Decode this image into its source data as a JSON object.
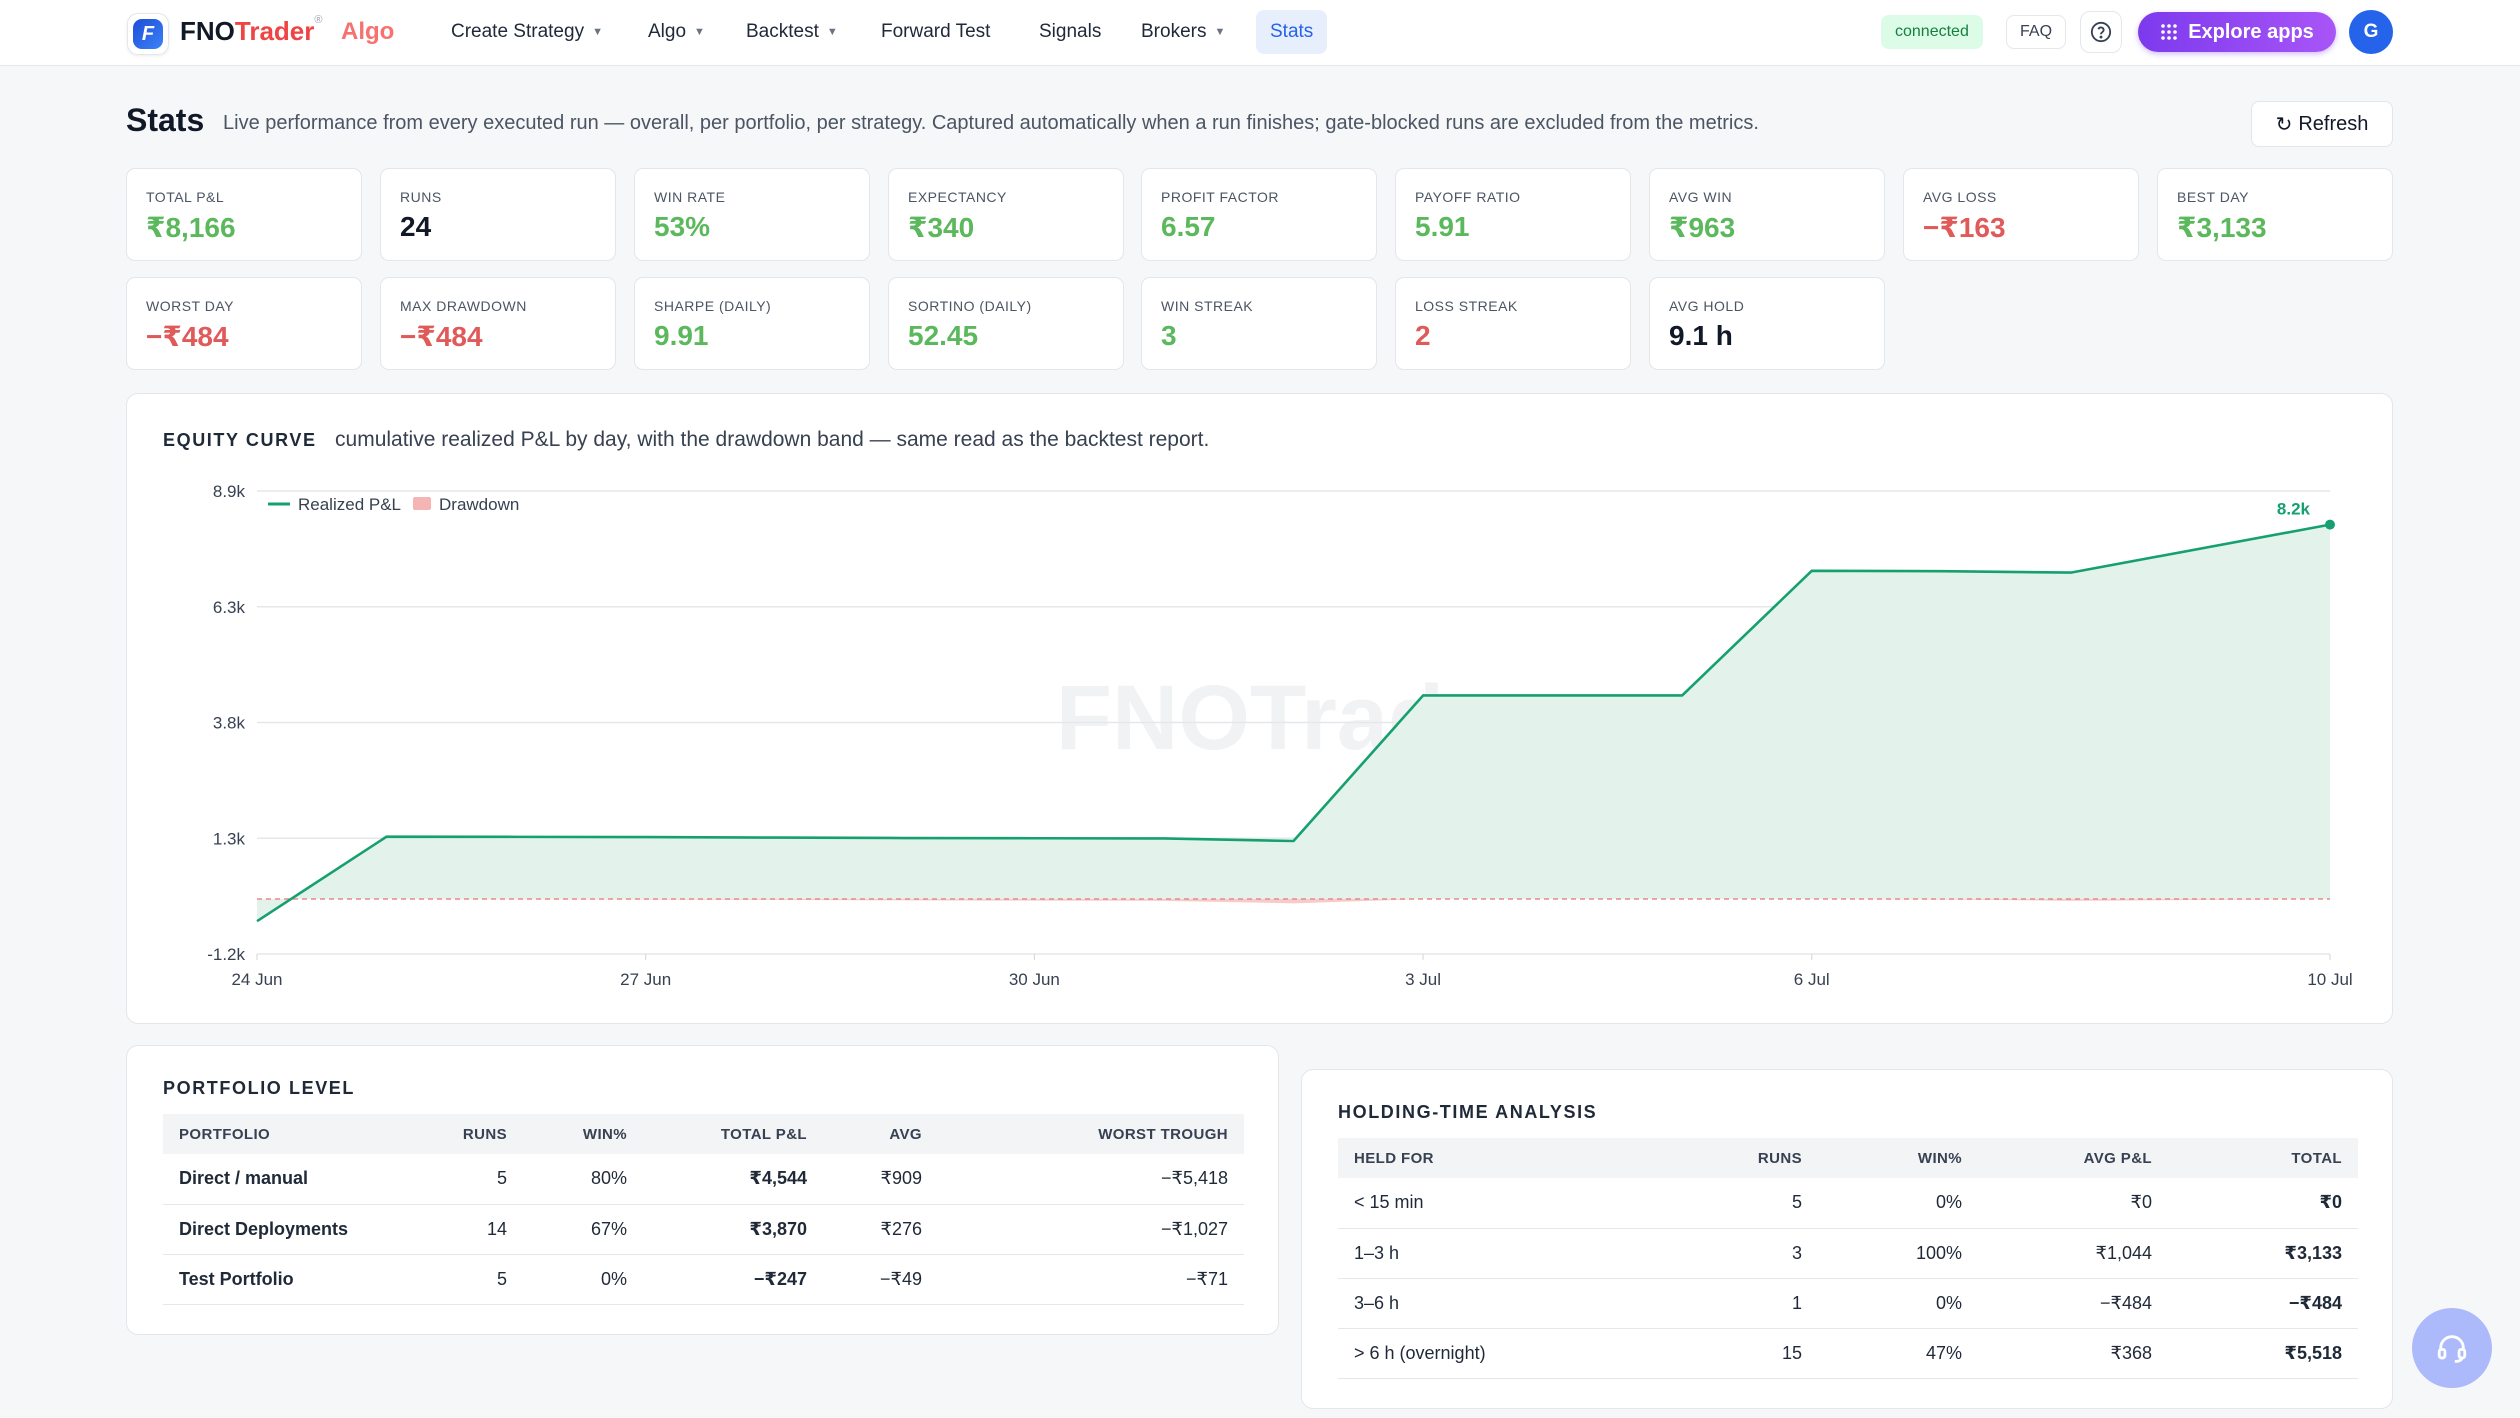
{
  "app": {
    "brand_fno": "FNO",
    "brand_trader": "Trader",
    "brand_reg": "®",
    "brand_algo": "Algo"
  },
  "nav": {
    "items": [
      {
        "label": "Create Strategy",
        "caret": true
      },
      {
        "label": "Algo",
        "caret": true
      },
      {
        "label": "Backtest",
        "caret": true
      },
      {
        "label": "Forward Test",
        "caret": false
      },
      {
        "label": "Signals",
        "caret": false
      },
      {
        "label": "Brokers",
        "caret": true
      },
      {
        "label": "Stats",
        "caret": false,
        "active": true
      }
    ],
    "status": "connected",
    "faq": "FAQ",
    "explore": "Explore apps",
    "avatar": "G"
  },
  "header": {
    "title": "Stats",
    "subtitle": "Live performance from every executed run — overall, per portfolio, per strategy. Captured automatically when a run finishes; gate-blocked runs are excluded from the metrics.",
    "refresh": "Refresh"
  },
  "stats": [
    {
      "label": "TOTAL P&L",
      "value": "₹8,166",
      "tone": "pos"
    },
    {
      "label": "RUNS",
      "value": "24",
      "tone": "neu"
    },
    {
      "label": "WIN RATE",
      "value": "53%",
      "tone": "pos"
    },
    {
      "label": "EXPECTANCY",
      "value": "₹340",
      "tone": "pos"
    },
    {
      "label": "PROFIT FACTOR",
      "value": "6.57",
      "tone": "pos"
    },
    {
      "label": "PAYOFF RATIO",
      "value": "5.91",
      "tone": "pos"
    },
    {
      "label": "AVG WIN",
      "value": "₹963",
      "tone": "pos"
    },
    {
      "label": "AVG LOSS",
      "value": "−₹163",
      "tone": "neg"
    },
    {
      "label": "BEST DAY",
      "value": "₹3,133",
      "tone": "pos"
    },
    {
      "label": "WORST DAY",
      "value": "−₹484",
      "tone": "neg"
    },
    {
      "label": "MAX DRAWDOWN",
      "value": "−₹484",
      "tone": "neg"
    },
    {
      "label": "SHARPE (DAILY)",
      "value": "9.91",
      "tone": "pos"
    },
    {
      "label": "SORTINO (DAILY)",
      "value": "52.45",
      "tone": "pos"
    },
    {
      "label": "WIN STREAK",
      "value": "3",
      "tone": "pos"
    },
    {
      "label": "LOSS STREAK",
      "value": "2",
      "tone": "neg"
    },
    {
      "label": "AVG HOLD",
      "value": "9.1 h",
      "tone": "neu"
    }
  ],
  "equity": {
    "title": "EQUITY CURVE",
    "subtitle": "cumulative realized P&L by day, with the drawdown band — same read as the backtest report.",
    "watermark": "FNOTrader"
  },
  "chart_data": {
    "type": "area",
    "title": "",
    "xlabel": "",
    "ylabel": "",
    "x_ticks": [
      "24 Jun",
      "27 Jun",
      "30 Jun",
      "3 Jul",
      "6 Jul",
      "10 Jul"
    ],
    "y_ticks": [
      "8.9k",
      "6.3k",
      "3.8k",
      "1.3k",
      "-1.2k"
    ],
    "ylim": [
      -1200,
      8900
    ],
    "legend_position": "top-left",
    "end_label": "8.2k",
    "colors": {
      "line": "#16a070",
      "fill": "#e3f3ec",
      "drawdown": "#f5b5b5"
    },
    "series": [
      {
        "name": "Realized P&L",
        "points": [
          [
            "24 Jun",
            -484
          ],
          [
            "25 Jun",
            1360
          ],
          [
            "26 Jun",
            1355
          ],
          [
            "27 Jun",
            1350
          ],
          [
            "28 Jun",
            1340
          ],
          [
            "29 Jun",
            1330
          ],
          [
            "30 Jun",
            1325
          ],
          [
            "1 Jul",
            1320
          ],
          [
            "2 Jul",
            1265
          ],
          [
            "3 Jul",
            4440
          ],
          [
            "4 Jul",
            4440
          ],
          [
            "5 Jul",
            4440
          ],
          [
            "6 Jul",
            7160
          ],
          [
            "7 Jul",
            7150
          ],
          [
            "8 Jul",
            7120
          ],
          [
            "10 Jul",
            8166
          ]
        ]
      },
      {
        "name": "Drawdown",
        "points": [
          [
            "24 Jun",
            0
          ],
          [
            "25 Jun",
            0
          ],
          [
            "26 Jun",
            -5
          ],
          [
            "27 Jun",
            -10
          ],
          [
            "28 Jun",
            -20
          ],
          [
            "29 Jun",
            -30
          ],
          [
            "30 Jun",
            -35
          ],
          [
            "1 Jul",
            -40
          ],
          [
            "2 Jul",
            -95
          ],
          [
            "3 Jul",
            0
          ],
          [
            "4 Jul",
            0
          ],
          [
            "5 Jul",
            0
          ],
          [
            "6 Jul",
            0
          ],
          [
            "7 Jul",
            -10
          ],
          [
            "8 Jul",
            -40
          ],
          [
            "10 Jul",
            0
          ]
        ]
      }
    ]
  },
  "portfolio": {
    "title": "PORTFOLIO LEVEL",
    "columns": [
      "PORTFOLIO",
      "RUNS",
      "WIN%",
      "TOTAL P&L",
      "AVG",
      "WORST TROUGH"
    ],
    "rows": [
      {
        "name": "Direct / manual",
        "runs": "5",
        "win": "80%",
        "total": "₹4,544",
        "avg": "₹909",
        "worst": "−₹5,418",
        "total_tone": "pos",
        "avg_tone": "pos"
      },
      {
        "name": "Direct Deployments",
        "runs": "14",
        "win": "67%",
        "total": "₹3,870",
        "avg": "₹276",
        "worst": "−₹1,027",
        "total_tone": "pos",
        "avg_tone": "pos"
      },
      {
        "name": "Test Portfolio",
        "runs": "5",
        "win": "0%",
        "total": "−₹247",
        "avg": "−₹49",
        "worst": "−₹71",
        "total_tone": "neg",
        "avg_tone": "neg"
      }
    ]
  },
  "holding": {
    "title": "HOLDING-TIME ANALYSIS",
    "columns": [
      "HELD FOR",
      "RUNS",
      "WIN%",
      "AVG P&L",
      "TOTAL"
    ],
    "rows": [
      {
        "held": "< 15 min",
        "runs": "5",
        "win": "0%",
        "avg": "₹0",
        "total": "₹0",
        "tone": "neu"
      },
      {
        "held": "1–3 h",
        "runs": "3",
        "win": "100%",
        "avg": "₹1,044",
        "total": "₹3,133",
        "tone": "pos"
      },
      {
        "held": "3–6 h",
        "runs": "1",
        "win": "0%",
        "avg": "−₹484",
        "total": "−₹484",
        "tone": "neg"
      },
      {
        "held": "> 6 h (overnight)",
        "runs": "15",
        "win": "47%",
        "avg": "₹368",
        "total": "₹5,518",
        "tone": "pos"
      }
    ]
  }
}
